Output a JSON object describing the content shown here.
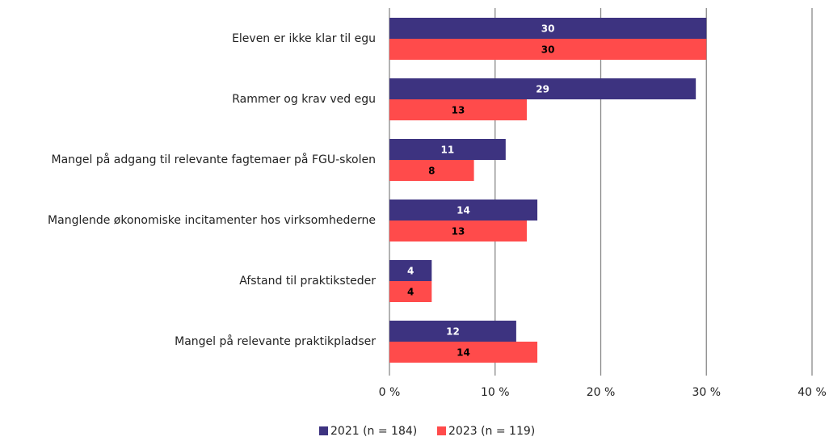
{
  "chart_data": {
    "type": "barh",
    "categories": [
      "Eleven er ikke klar til egu",
      "Rammer og krav ved egu",
      "Mangel på adgang til relevante fagtemaer på FGU-skolen",
      "Manglende økonomiske incitamenter hos virksomhederne",
      "Afstand til praktiksteder",
      "Mangel på relevante praktikpladser"
    ],
    "series": [
      {
        "name": "2021 (n = 184)",
        "color": "#3d3380",
        "label_color": "#ffffff",
        "values": [
          30,
          29,
          11,
          14,
          4,
          12
        ]
      },
      {
        "name": "2023 (n = 119)",
        "color": "#ff4b4b",
        "label_color": "#000000",
        "values": [
          30,
          13,
          8,
          13,
          4,
          14
        ]
      }
    ],
    "xlim": [
      0,
      40
    ],
    "xticks": [
      {
        "value": 0,
        "label": "0 %"
      },
      {
        "value": 10,
        "label": "10 %"
      },
      {
        "value": 20,
        "label": "20 %"
      },
      {
        "value": 30,
        "label": "30 %"
      },
      {
        "value": 40,
        "label": "40 %"
      }
    ],
    "grid": true,
    "legend": "bottom"
  }
}
